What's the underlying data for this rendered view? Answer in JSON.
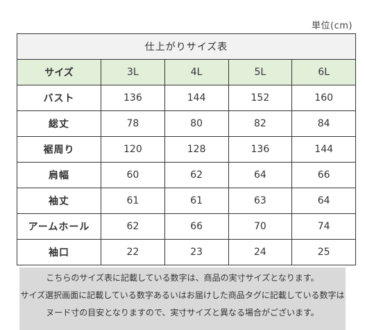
{
  "unit_label": "単位(cm)",
  "table": {
    "title": "仕上がりサイズ表",
    "header_label": "サイズ",
    "sizes": [
      "3L",
      "4L",
      "5L",
      "6L"
    ],
    "rows": [
      {
        "label": "バスト",
        "values": [
          "136",
          "144",
          "152",
          "160"
        ]
      },
      {
        "label": "総丈",
        "values": [
          "78",
          "80",
          "82",
          "84"
        ]
      },
      {
        "label": "裾周り",
        "values": [
          "120",
          "128",
          "136",
          "144"
        ]
      },
      {
        "label": "肩幅",
        "values": [
          "60",
          "62",
          "64",
          "66"
        ]
      },
      {
        "label": "袖丈",
        "values": [
          "61",
          "61",
          "63",
          "64"
        ]
      },
      {
        "label": "アームホール",
        "values": [
          "62",
          "66",
          "70",
          "74"
        ]
      },
      {
        "label": "袖口",
        "values": [
          "22",
          "23",
          "24",
          "25"
        ]
      }
    ]
  },
  "notes": [
    "こちらのサイズ表に記載している数字は、商品の実寸サイズとなります。",
    "サイズ選択画面に記載している数字あるいはお届けした商品タグに記載している数字は",
    "ヌード寸の目安となりますので、実寸サイズと異なる場合がございます。"
  ]
}
